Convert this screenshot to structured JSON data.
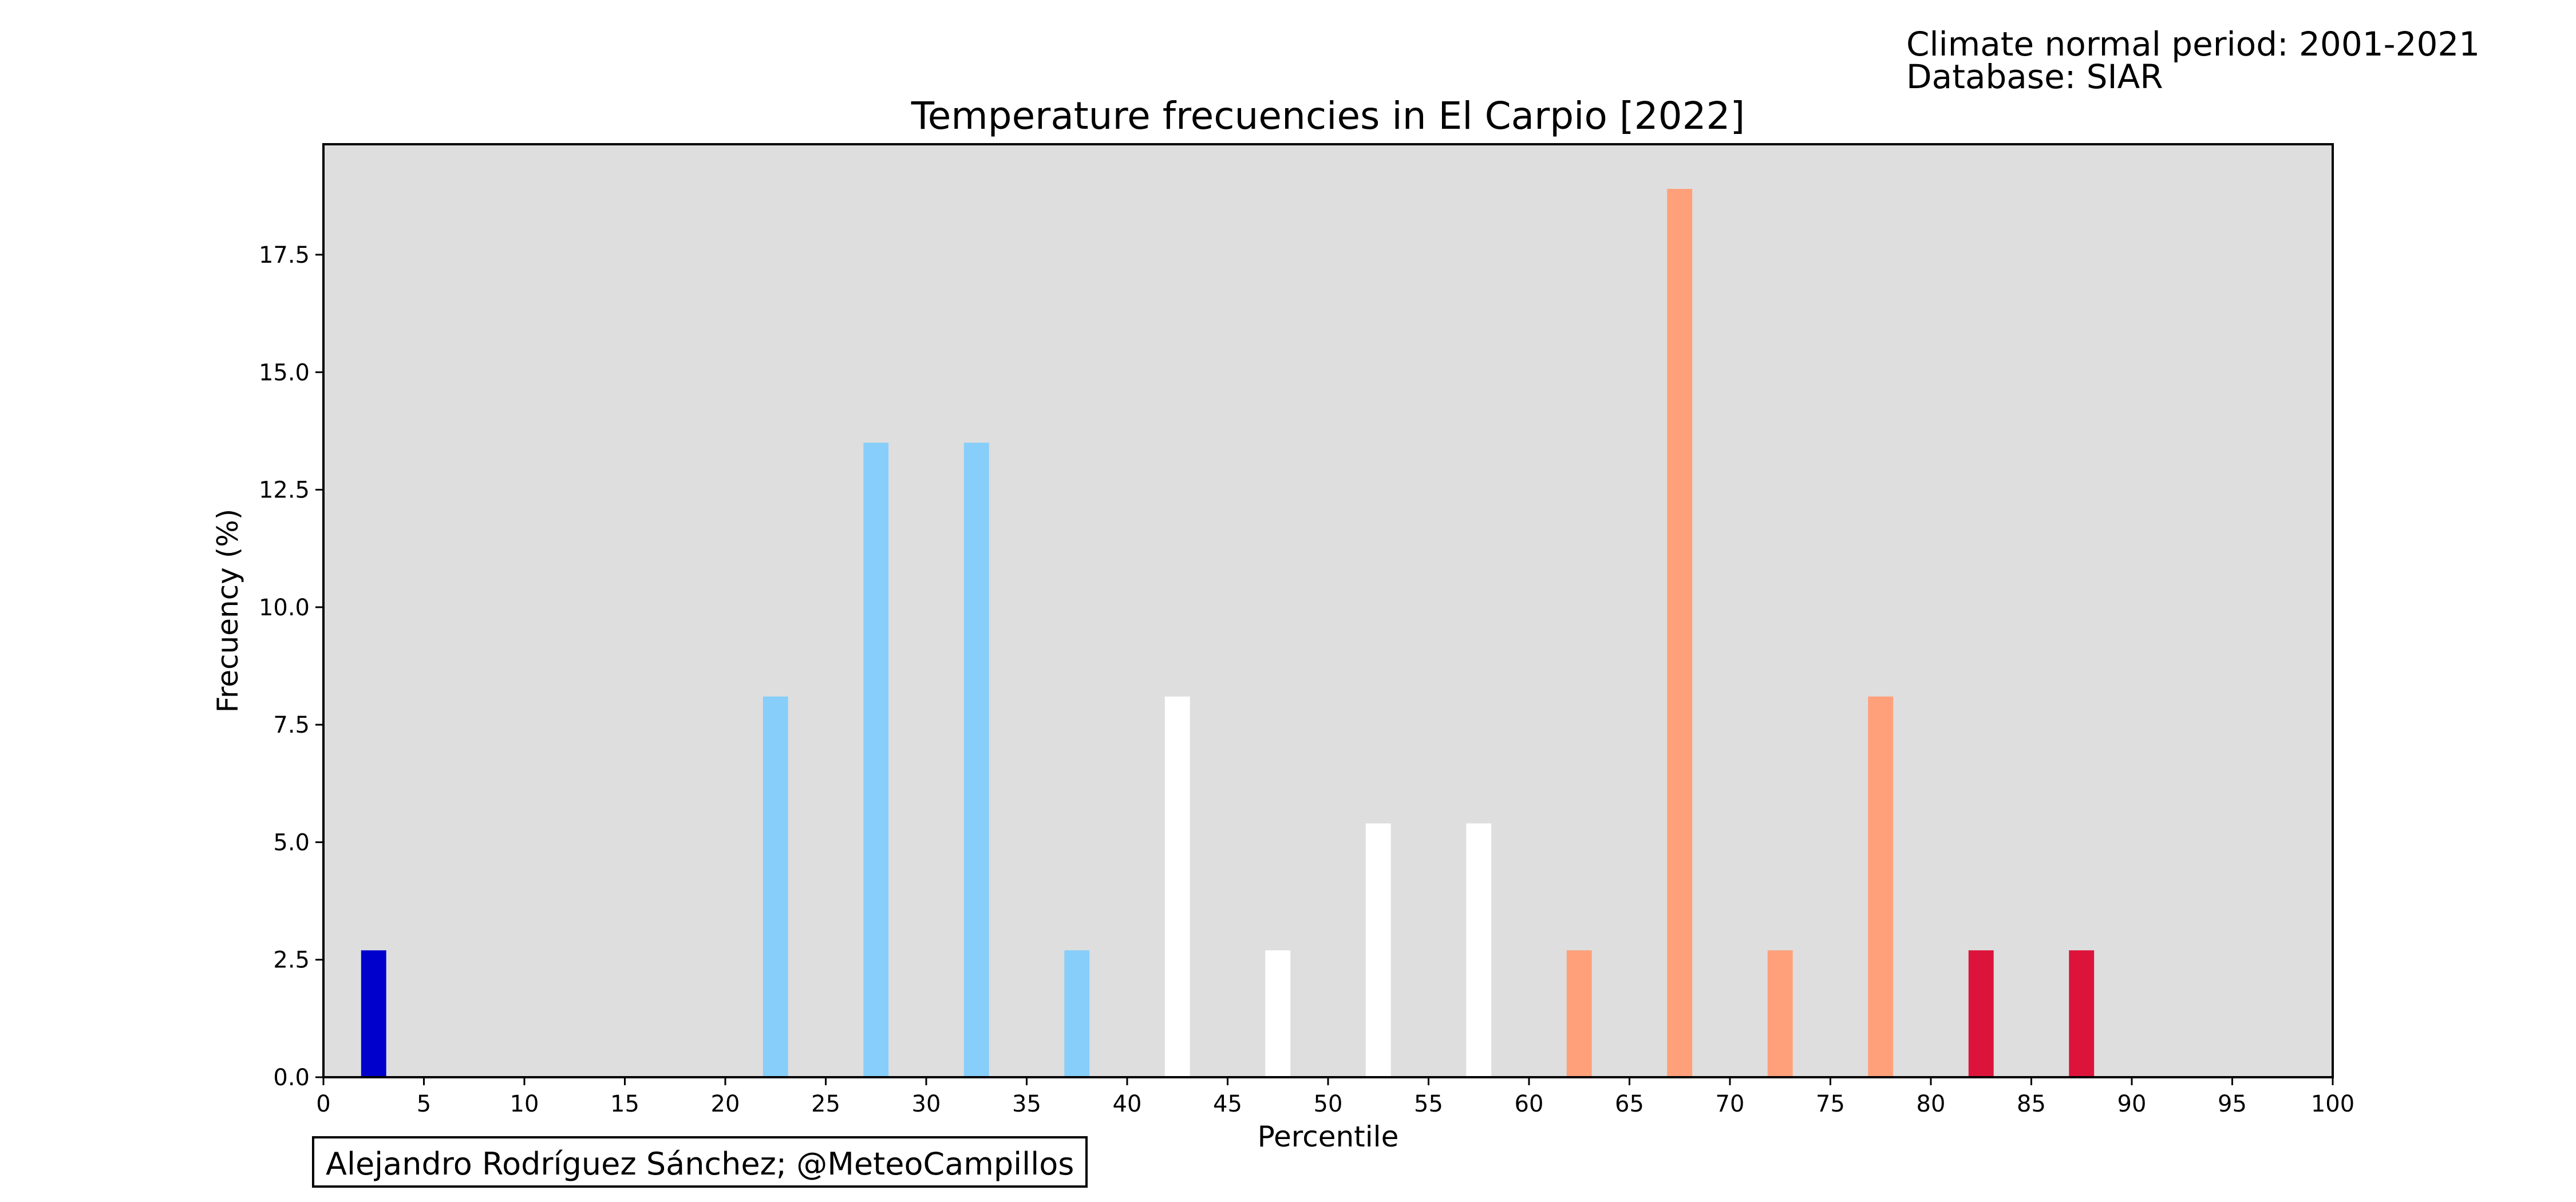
{
  "header": {
    "normal_period": "Climate normal period: 2001-2021",
    "database": "Database: SIAR"
  },
  "credit": "Alejandro Rodríguez Sánchez; @MeteoCampillos",
  "chart_data": {
    "type": "bar",
    "title": "Temperature frecuencies in El Carpio [2022]",
    "xlabel": "Percentile",
    "ylabel": "Frecuency (%)",
    "xlim": [
      0,
      100
    ],
    "ylim": [
      0,
      19.85
    ],
    "x_ticks": [
      0,
      5,
      10,
      15,
      20,
      25,
      30,
      35,
      40,
      45,
      50,
      55,
      60,
      65,
      70,
      75,
      80,
      85,
      90,
      95,
      100
    ],
    "y_ticks": [
      "0.0",
      "2.5",
      "5.0",
      "7.5",
      "10.0",
      "12.5",
      "15.0",
      "17.5"
    ],
    "plot_background": "#dedede",
    "grid": false,
    "legend": "none",
    "bar_width": 1.25,
    "bars": [
      {
        "x": 2.5,
        "value": 2.7,
        "color": "#0000cd"
      },
      {
        "x": 22.5,
        "value": 8.1,
        "color": "#87cefa"
      },
      {
        "x": 27.5,
        "value": 13.5,
        "color": "#87cefa"
      },
      {
        "x": 32.5,
        "value": 13.5,
        "color": "#87cefa"
      },
      {
        "x": 37.5,
        "value": 2.7,
        "color": "#87cefa"
      },
      {
        "x": 42.5,
        "value": 8.1,
        "color": "#ffffff"
      },
      {
        "x": 47.5,
        "value": 2.7,
        "color": "#ffffff"
      },
      {
        "x": 52.5,
        "value": 5.4,
        "color": "#ffffff"
      },
      {
        "x": 57.5,
        "value": 5.4,
        "color": "#ffffff"
      },
      {
        "x": 62.5,
        "value": 2.7,
        "color": "#ffa07a"
      },
      {
        "x": 67.5,
        "value": 18.9,
        "color": "#ffa07a"
      },
      {
        "x": 72.5,
        "value": 2.7,
        "color": "#ffa07a"
      },
      {
        "x": 77.5,
        "value": 8.1,
        "color": "#ffa07a"
      },
      {
        "x": 82.5,
        "value": 2.7,
        "color": "#dc143c"
      },
      {
        "x": 87.5,
        "value": 2.7,
        "color": "#dc143c"
      }
    ]
  }
}
